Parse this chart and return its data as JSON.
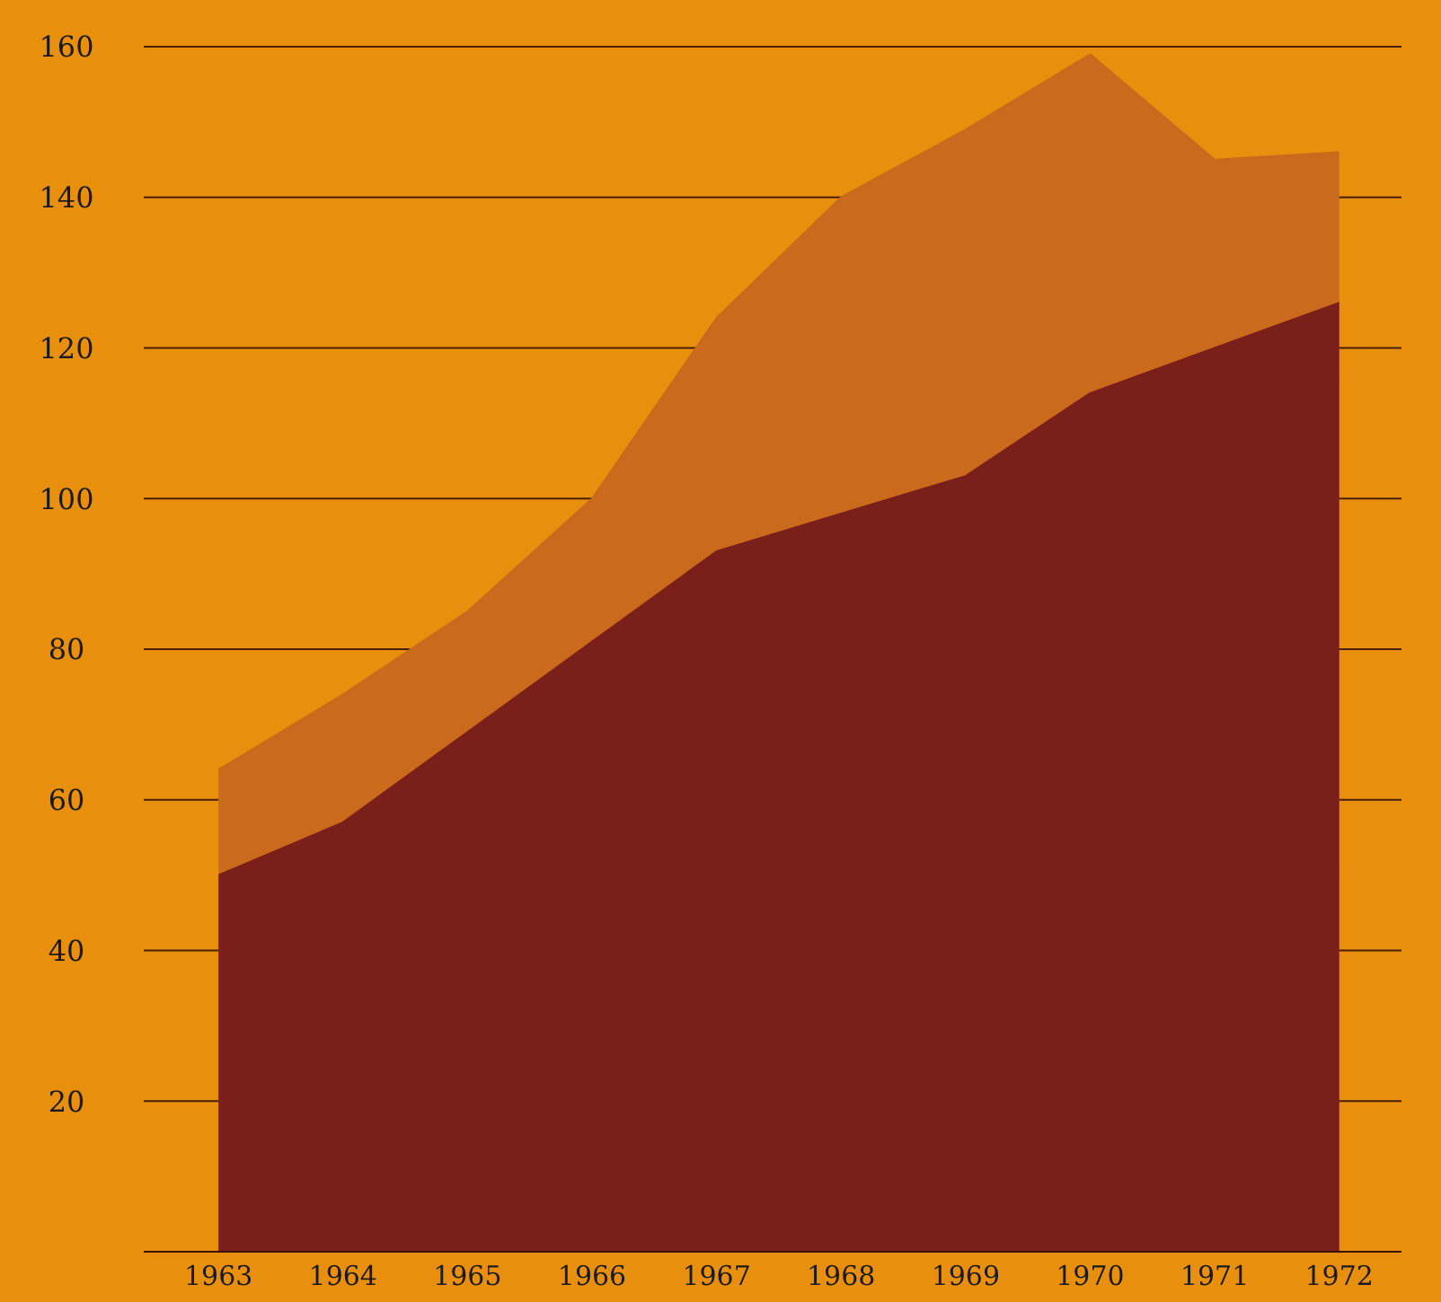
{
  "chart_data": {
    "type": "area",
    "categories": [
      "1963",
      "1964",
      "1965",
      "1966",
      "1967",
      "1968",
      "1969",
      "1970",
      "1971",
      "1972"
    ],
    "series": [
      {
        "color": "#c96a1c",
        "values": [
          64,
          74,
          85,
          100,
          124,
          140,
          149,
          159,
          145,
          146
        ]
      },
      {
        "color": "#7a1f1a",
        "values": [
          50,
          57,
          69,
          81,
          93,
          98,
          103,
          114,
          120,
          126
        ]
      }
    ],
    "ylim": [
      0,
      160
    ],
    "yticks": [
      20,
      40,
      60,
      80,
      100,
      120,
      140,
      160
    ],
    "grid": "y"
  }
}
